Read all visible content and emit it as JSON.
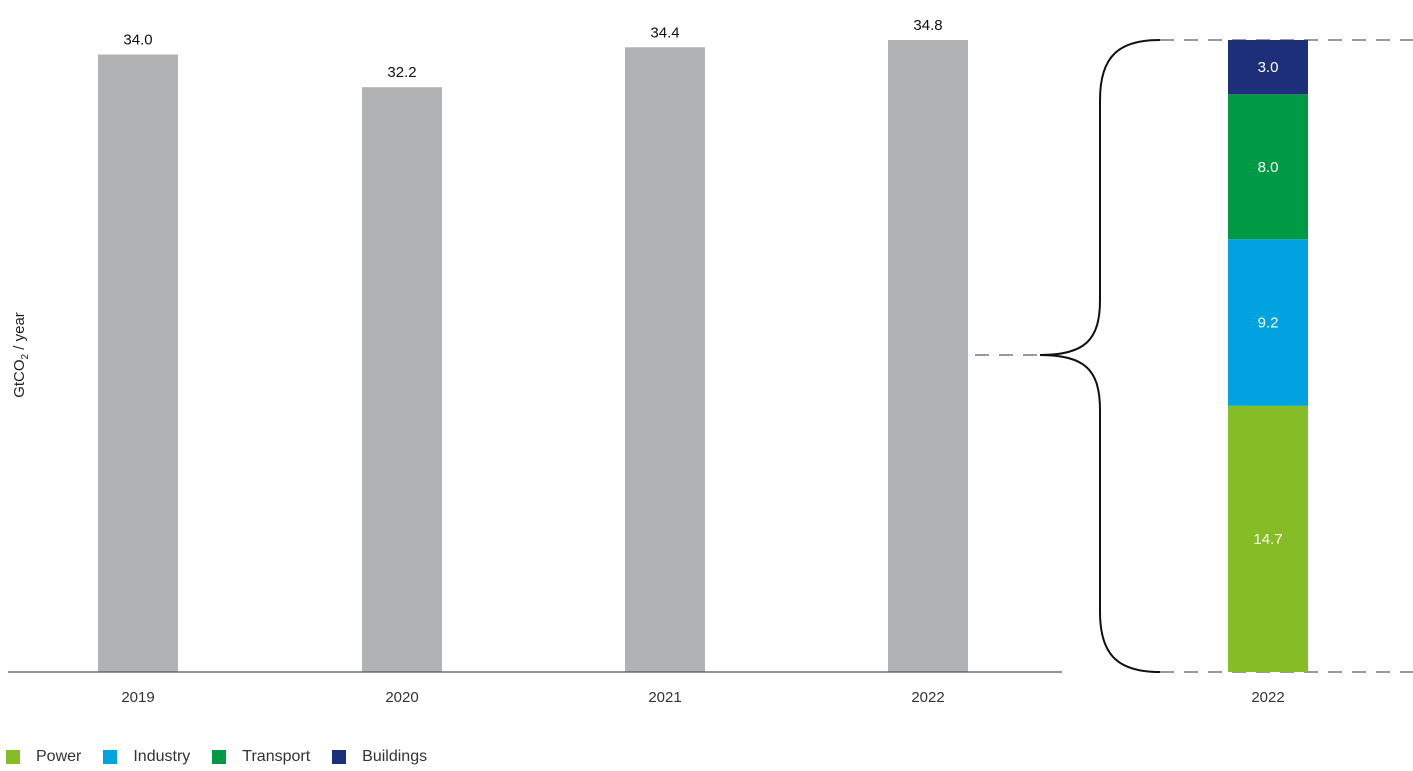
{
  "chart_data": [
    {
      "type": "bar",
      "ylabel": "GtCO₂ / year",
      "categories": [
        "2019",
        "2020",
        "2021",
        "2022"
      ],
      "values": [
        34.0,
        32.2,
        34.4,
        34.8
      ],
      "value_labels": [
        "34.0",
        "32.2",
        "34.4",
        "34.8"
      ],
      "bar_color": "#b1b2b4",
      "ylim": [
        0,
        34.8
      ]
    },
    {
      "type": "bar",
      "stacked": true,
      "categories": [
        "2022"
      ],
      "series": [
        {
          "name": "Power",
          "values": [
            14.7
          ],
          "label": "14.7",
          "color": "#86bc25"
        },
        {
          "name": "Industry",
          "values": [
            9.2
          ],
          "label": "9.2",
          "color": "#00a3e0"
        },
        {
          "name": "Transport",
          "values": [
            8.0
          ],
          "label": "8.0",
          "color": "#009a44"
        },
        {
          "name": "Buildings",
          "values": [
            3.0
          ],
          "label": "3.0",
          "color": "#1e2f7a"
        }
      ],
      "ylim": [
        0,
        34.9
      ]
    }
  ],
  "legend": [
    {
      "label": "Power",
      "color": "#86bc25"
    },
    {
      "label": "Industry",
      "color": "#00a3e0"
    },
    {
      "label": "Transport",
      "color": "#009a44"
    },
    {
      "label": "Buildings",
      "color": "#1e2f7a"
    }
  ]
}
